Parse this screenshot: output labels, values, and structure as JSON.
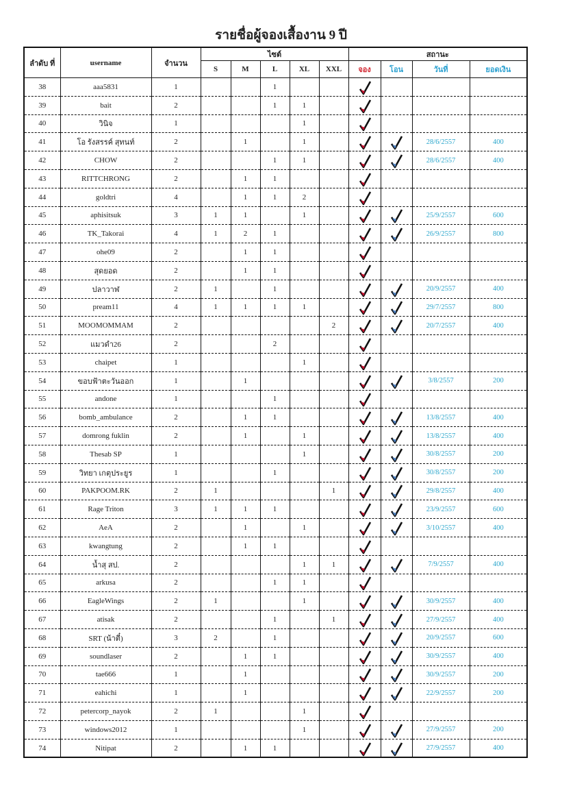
{
  "title": "รายชื่อผู้จองเสื้องาน 9 ปี",
  "headers": {
    "number": "ลำดับ ที่",
    "username": "username",
    "quantity": "จำนวน",
    "size": "ไซต์",
    "sizes": [
      "S",
      "M",
      "L",
      "XL",
      "XXL"
    ],
    "status": "สถานะ",
    "booked": "จอง",
    "transferred": "โอน",
    "date": "วันที่",
    "amount": "ยอดเงิน"
  },
  "colors": {
    "booked_header": "#d0202a",
    "status_header": "#2aa0d0",
    "booked_check": "#c8102e",
    "transfer_check": "#4a7fc0"
  },
  "rows": [
    {
      "no": "38",
      "user": "aaa5831",
      "qty": "1",
      "S": "",
      "M": "",
      "L": "1",
      "XL": "",
      "XXL": "",
      "booked": true,
      "paid": false,
      "date": "",
      "amount": ""
    },
    {
      "no": "39",
      "user": "bait",
      "qty": "2",
      "S": "",
      "M": "",
      "L": "1",
      "XL": "1",
      "XXL": "",
      "booked": true,
      "paid": false,
      "date": "",
      "amount": ""
    },
    {
      "no": "40",
      "user": "วินิจ",
      "qty": "1",
      "S": "",
      "M": "",
      "L": "",
      "XL": "1",
      "XXL": "",
      "booked": true,
      "paid": false,
      "date": "",
      "amount": ""
    },
    {
      "no": "41",
      "user": "โอ รังสรรค์ สุทนท์",
      "qty": "2",
      "S": "",
      "M": "1",
      "L": "",
      "XL": "1",
      "XXL": "",
      "booked": true,
      "paid": true,
      "date": "28/6/2557",
      "amount": "400"
    },
    {
      "no": "42",
      "user": "CHOW",
      "qty": "2",
      "S": "",
      "M": "",
      "L": "1",
      "XL": "1",
      "XXL": "",
      "booked": true,
      "paid": true,
      "date": "28/6/2557",
      "amount": "400"
    },
    {
      "no": "43",
      "user": "RITTCHRONG",
      "qty": "2",
      "S": "",
      "M": "1",
      "L": "1",
      "XL": "",
      "XXL": "",
      "booked": true,
      "paid": false,
      "date": "",
      "amount": ""
    },
    {
      "no": "44",
      "user": "goldtri",
      "qty": "4",
      "S": "",
      "M": "1",
      "L": "1",
      "XL": "2",
      "XXL": "",
      "booked": true,
      "paid": false,
      "date": "",
      "amount": ""
    },
    {
      "no": "45",
      "user": "aphisitsuk",
      "qty": "3",
      "S": "1",
      "M": "1",
      "L": "",
      "XL": "1",
      "XXL": "",
      "booked": true,
      "paid": true,
      "date": "25/9/2557",
      "amount": "600"
    },
    {
      "no": "46",
      "user": "TK_Takorai",
      "qty": "4",
      "S": "1",
      "M": "2",
      "L": "1",
      "XL": "",
      "XXL": "",
      "booked": true,
      "paid": true,
      "date": "26/9/2557",
      "amount": "800"
    },
    {
      "no": "47",
      "user": "ohe09",
      "qty": "2",
      "S": "",
      "M": "1",
      "L": "1",
      "XL": "",
      "XXL": "",
      "booked": true,
      "paid": false,
      "date": "",
      "amount": ""
    },
    {
      "no": "48",
      "user": "สุดยอด",
      "qty": "2",
      "S": "",
      "M": "1",
      "L": "1",
      "XL": "",
      "XXL": "",
      "booked": true,
      "paid": false,
      "date": "",
      "amount": ""
    },
    {
      "no": "49",
      "user": "ปลาวาฬ",
      "qty": "2",
      "S": "1",
      "M": "",
      "L": "1",
      "XL": "",
      "XXL": "",
      "booked": true,
      "paid": true,
      "date": "20/9/2557",
      "amount": "400"
    },
    {
      "no": "50",
      "user": "pream11",
      "qty": "4",
      "S": "1",
      "M": "1",
      "L": "1",
      "XL": "1",
      "XXL": "",
      "booked": true,
      "paid": true,
      "date": "29/7/2557",
      "amount": "800"
    },
    {
      "no": "51",
      "user": "MOOMOMMAM",
      "qty": "2",
      "S": "",
      "M": "",
      "L": "",
      "XL": "",
      "XXL": "2",
      "booked": true,
      "paid": true,
      "date": "20/7/2557",
      "amount": "400"
    },
    {
      "no": "52",
      "user": "แมวดำ26",
      "qty": "2",
      "S": "",
      "M": "",
      "L": "2",
      "XL": "",
      "XXL": "",
      "booked": true,
      "paid": false,
      "date": "",
      "amount": ""
    },
    {
      "no": "53",
      "user": "chaipet",
      "qty": "1",
      "S": "",
      "M": "",
      "L": "",
      "XL": "1",
      "XXL": "",
      "booked": true,
      "paid": false,
      "date": "",
      "amount": ""
    },
    {
      "no": "54",
      "user": "ขอบฟ้าตะวันออก",
      "qty": "1",
      "S": "",
      "M": "1",
      "L": "",
      "XL": "",
      "XXL": "",
      "booked": true,
      "paid": true,
      "date": "3/8/2557",
      "amount": "200"
    },
    {
      "no": "55",
      "user": "andone",
      "qty": "1",
      "S": "",
      "M": "",
      "L": "1",
      "XL": "",
      "XXL": "",
      "booked": true,
      "paid": false,
      "date": "",
      "amount": ""
    },
    {
      "no": "56",
      "user": "bomb_ambulance",
      "qty": "2",
      "S": "",
      "M": "1",
      "L": "1",
      "XL": "",
      "XXL": "",
      "booked": true,
      "paid": true,
      "date": "13/8/2557",
      "amount": "400"
    },
    {
      "no": "57",
      "user": "domrong fuklin",
      "qty": "2",
      "S": "",
      "M": "1",
      "L": "",
      "XL": "1",
      "XXL": "",
      "booked": true,
      "paid": true,
      "date": "13/8/2557",
      "amount": "400"
    },
    {
      "no": "58",
      "user": "Thesab SP",
      "qty": "1",
      "S": "",
      "M": "",
      "L": "",
      "XL": "1",
      "XXL": "",
      "booked": true,
      "paid": true,
      "date": "30/8/2557",
      "amount": "200"
    },
    {
      "no": "59",
      "user": "วิทยา เกตุประยูร",
      "qty": "1",
      "S": "",
      "M": "",
      "L": "1",
      "XL": "",
      "XXL": "",
      "booked": true,
      "paid": true,
      "date": "30/8/2557",
      "amount": "200"
    },
    {
      "no": "60",
      "user": "PAKPOOM.RK",
      "qty": "2",
      "S": "1",
      "M": "",
      "L": "",
      "XL": "",
      "XXL": "1",
      "booked": true,
      "paid": true,
      "date": "29/8/2557",
      "amount": "400"
    },
    {
      "no": "61",
      "user": "Rage Triton",
      "qty": "3",
      "S": "1",
      "M": "1",
      "L": "1",
      "XL": "",
      "XXL": "",
      "booked": true,
      "paid": true,
      "date": "23/9/2557",
      "amount": "600"
    },
    {
      "no": "62",
      "user": "AeA",
      "qty": "2",
      "S": "",
      "M": "1",
      "L": "",
      "XL": "1",
      "XXL": "",
      "booked": true,
      "paid": true,
      "date": "3/10/2557",
      "amount": "400"
    },
    {
      "no": "63",
      "user": "kwangtung",
      "qty": "2",
      "S": "",
      "M": "1",
      "L": "1",
      "XL": "",
      "XXL": "",
      "booked": true,
      "paid": false,
      "date": "",
      "amount": ""
    },
    {
      "no": "64",
      "user": "น้ำสุ สป.",
      "qty": "2",
      "S": "",
      "M": "",
      "L": "",
      "XL": "1",
      "XXL": "1",
      "booked": true,
      "paid": true,
      "date": "7/9/2557",
      "amount": "400"
    },
    {
      "no": "65",
      "user": "arkusa",
      "qty": "2",
      "S": "",
      "M": "",
      "L": "1",
      "XL": "1",
      "XXL": "",
      "booked": true,
      "paid": false,
      "date": "",
      "amount": ""
    },
    {
      "no": "66",
      "user": "EagleWings",
      "qty": "2",
      "S": "1",
      "M": "",
      "L": "",
      "XL": "1",
      "XXL": "",
      "booked": true,
      "paid": true,
      "date": "30/9/2557",
      "amount": "400"
    },
    {
      "no": "67",
      "user": "atisak",
      "qty": "2",
      "S": "",
      "M": "",
      "L": "1",
      "XL": "",
      "XXL": "1",
      "booked": true,
      "paid": true,
      "date": "27/9/2557",
      "amount": "400"
    },
    {
      "no": "68",
      "user": "SRT (น้าตี๋)",
      "qty": "3",
      "S": "2",
      "M": "",
      "L": "1",
      "XL": "",
      "XXL": "",
      "booked": true,
      "paid": true,
      "date": "20/9/2557",
      "amount": "600"
    },
    {
      "no": "69",
      "user": "soundlaser",
      "qty": "2",
      "S": "",
      "M": "1",
      "L": "1",
      "XL": "",
      "XXL": "",
      "booked": true,
      "paid": true,
      "date": "30/9/2557",
      "amount": "400"
    },
    {
      "no": "70",
      "user": "tae666",
      "qty": "1",
      "S": "",
      "M": "1",
      "L": "",
      "XL": "",
      "XXL": "",
      "booked": true,
      "paid": true,
      "date": "30/9/2557",
      "amount": "200"
    },
    {
      "no": "71",
      "user": "eahichi",
      "qty": "1",
      "S": "",
      "M": "1",
      "L": "",
      "XL": "",
      "XXL": "",
      "booked": true,
      "paid": true,
      "date": "22/9/2557",
      "amount": "200"
    },
    {
      "no": "72",
      "user": "petercorp_nayok",
      "qty": "2",
      "S": "1",
      "M": "",
      "L": "",
      "XL": "1",
      "XXL": "",
      "booked": true,
      "paid": false,
      "date": "",
      "amount": ""
    },
    {
      "no": "73",
      "user": "windows2012",
      "qty": "1",
      "S": "",
      "M": "",
      "L": "",
      "XL": "1",
      "XXL": "",
      "booked": true,
      "paid": true,
      "date": "27/9/2557",
      "amount": "200"
    },
    {
      "no": "74",
      "user": "Nitipat",
      "qty": "2",
      "S": "",
      "M": "1",
      "L": "1",
      "XL": "",
      "XXL": "",
      "booked": true,
      "paid": true,
      "date": "27/9/2557",
      "amount": "400"
    }
  ]
}
